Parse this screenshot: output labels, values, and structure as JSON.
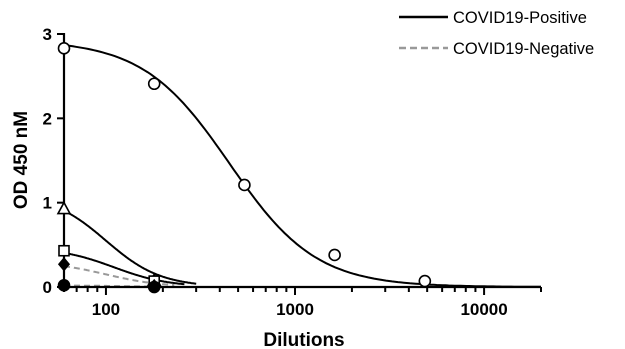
{
  "chart_data": {
    "type": "line",
    "xscale": "log",
    "xlabel": "Dilutions",
    "ylabel": "OD 450 nM",
    "xlim": [
      60,
      20000
    ],
    "ylim": [
      0,
      3
    ],
    "xticks": [
      100,
      1000,
      10000
    ],
    "xtick_labels": [
      "100",
      "1000",
      "10000"
    ],
    "yticks": [
      0,
      1,
      2,
      3
    ],
    "ytick_labels": [
      "0",
      "1",
      "2",
      "3"
    ],
    "legend_position": "top-right",
    "grid": false,
    "legend": [
      {
        "label": "COVID19-Positive",
        "style": "solid",
        "color": "#000000"
      },
      {
        "label": "COVID19-Negative",
        "style": "dashed",
        "color": "#999999"
      }
    ],
    "series": [
      {
        "group": "COVID19-Positive",
        "marker": "circle",
        "fill": "#ffffff",
        "color": "#000000",
        "dash": "",
        "x": [
          60,
          180,
          540,
          1620,
          4860
        ],
        "y": [
          2.83,
          2.41,
          1.21,
          0.38,
          0.07
        ],
        "curve": {
          "top": 2.93,
          "ec50": 450,
          "hill": 1.9
        }
      },
      {
        "group": "COVID19-Positive",
        "marker": "triangle",
        "fill": "#ffffff",
        "color": "#000000",
        "dash": "",
        "x": [
          60,
          180
        ],
        "y": [
          0.93,
          0.08
        ],
        "curve": {
          "top": 1.1,
          "ec50": 100,
          "hill": 3.0,
          "xmax": 300
        }
      },
      {
        "group": "COVID19-Positive",
        "marker": "square",
        "fill": "#ffffff",
        "color": "#000000",
        "dash": "",
        "x": [
          60,
          180
        ],
        "y": [
          0.43,
          0.07
        ],
        "curve": {
          "top": 0.47,
          "ec50": 110,
          "hill": 3.0,
          "xmax": 260
        }
      },
      {
        "group": "COVID19-Negative",
        "marker": "diamond",
        "fill": "#000000",
        "color": "#999999",
        "dash": "6 4",
        "x": [
          60,
          180
        ],
        "y": [
          0.27,
          0.01
        ],
        "curve": {
          "top": 0.3,
          "ec50": 100,
          "hill": 3.0,
          "xmax": 230
        }
      },
      {
        "group": "COVID19-Negative",
        "marker": "circle",
        "fill": "#000000",
        "color": "#999999",
        "dash": "6 4",
        "x": [
          60,
          180
        ],
        "y": [
          0.02,
          0.0
        ],
        "curve": {
          "top": 0.02,
          "ec50": 120,
          "hill": 3.0,
          "xmax": 200
        }
      }
    ]
  }
}
